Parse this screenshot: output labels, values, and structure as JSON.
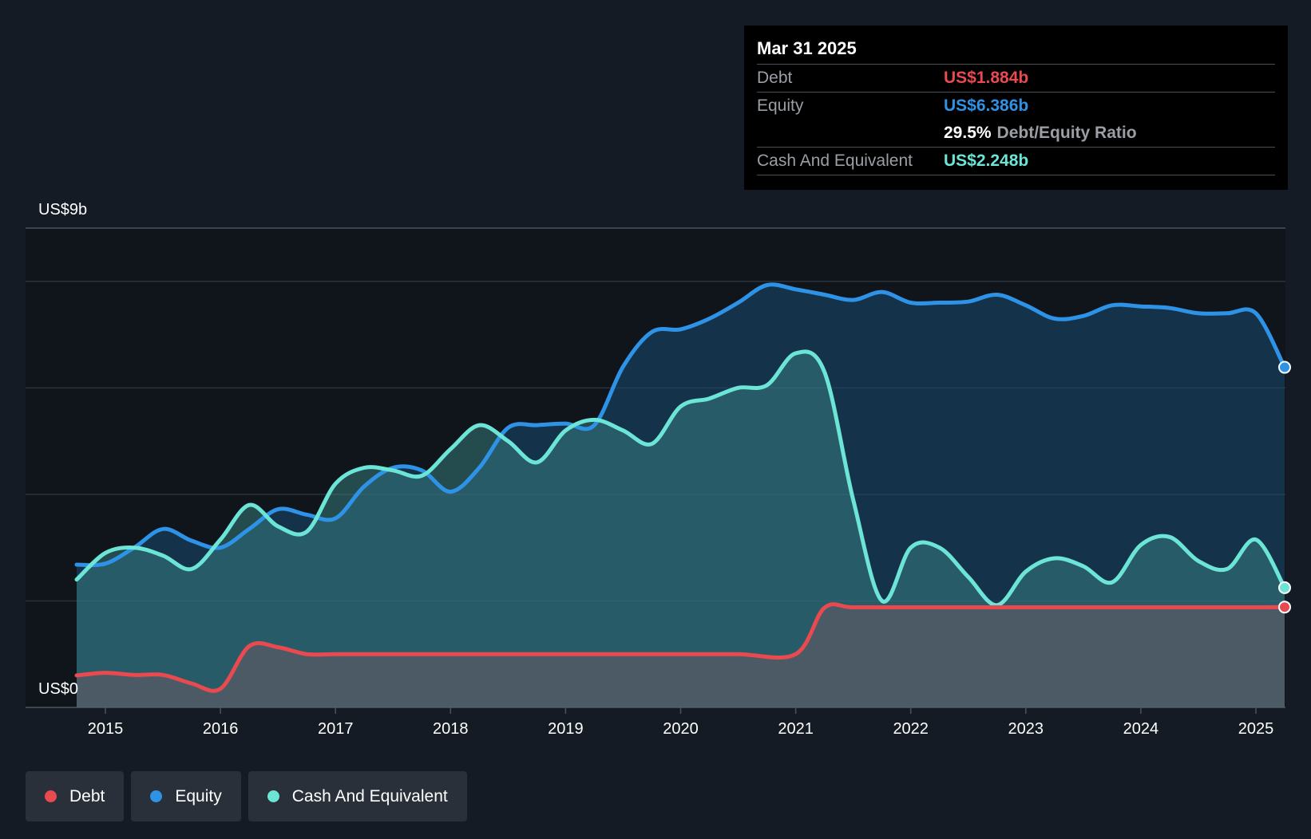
{
  "tooltip": {
    "date": "Mar 31 2025",
    "rows": [
      {
        "label": "Debt",
        "value": "US$1.884b",
        "color": "#e84a50"
      },
      {
        "label": "Equity",
        "value": "US$6.386b",
        "color": "#2e93e6"
      },
      {
        "label": "",
        "value": "29.5%",
        "extra": "Debt/Equity Ratio"
      },
      {
        "label": "Cash And Equivalent",
        "value": "US$2.248b",
        "color": "#6ce5d6"
      }
    ]
  },
  "legend": [
    {
      "label": "Debt",
      "color": "#e84a50"
    },
    {
      "label": "Equity",
      "color": "#2e93e6"
    },
    {
      "label": "Cash And Equivalent",
      "color": "#6ce5d6"
    }
  ],
  "chart_data": {
    "type": "area",
    "ylim": [
      0,
      9
    ],
    "y_top_label": "US$9b",
    "y_bottom_label": "US$0",
    "x_range": [
      2014.75,
      2025.25
    ],
    "x_ticks": [
      "2015",
      "2016",
      "2017",
      "2018",
      "2019",
      "2020",
      "2021",
      "2022",
      "2023",
      "2024",
      "2025"
    ],
    "grid": true,
    "series": [
      {
        "name": "Debt",
        "color": "#e84a50",
        "points": [
          [
            2014.75,
            0.6
          ],
          [
            2015.0,
            0.65
          ],
          [
            2015.25,
            0.61
          ],
          [
            2015.5,
            0.61
          ],
          [
            2015.75,
            0.45
          ],
          [
            2016.0,
            0.35
          ],
          [
            2016.25,
            1.15
          ],
          [
            2016.5,
            1.13
          ],
          [
            2016.75,
            1.0
          ],
          [
            2017.0,
            1.0
          ],
          [
            2017.5,
            1.0
          ],
          [
            2018.0,
            1.0
          ],
          [
            2018.5,
            1.0
          ],
          [
            2019.0,
            1.0
          ],
          [
            2019.5,
            1.0
          ],
          [
            2020.0,
            1.0
          ],
          [
            2020.5,
            1.0
          ],
          [
            2021.0,
            1.0
          ],
          [
            2021.25,
            1.87
          ],
          [
            2021.5,
            1.88
          ],
          [
            2022.0,
            1.88
          ],
          [
            2022.5,
            1.88
          ],
          [
            2023.0,
            1.88
          ],
          [
            2023.5,
            1.88
          ],
          [
            2024.0,
            1.88
          ],
          [
            2024.5,
            1.88
          ],
          [
            2025.0,
            1.88
          ],
          [
            2025.25,
            1.884
          ]
        ]
      },
      {
        "name": "Equity",
        "color": "#2e93e6",
        "points": [
          [
            2014.75,
            2.68
          ],
          [
            2015.0,
            2.7
          ],
          [
            2015.25,
            3.0
          ],
          [
            2015.5,
            3.35
          ],
          [
            2015.75,
            3.13
          ],
          [
            2016.0,
            3.0
          ],
          [
            2016.25,
            3.35
          ],
          [
            2016.5,
            3.72
          ],
          [
            2016.75,
            3.62
          ],
          [
            2017.0,
            3.55
          ],
          [
            2017.25,
            4.15
          ],
          [
            2017.5,
            4.5
          ],
          [
            2017.75,
            4.45
          ],
          [
            2018.0,
            4.05
          ],
          [
            2018.25,
            4.5
          ],
          [
            2018.5,
            5.25
          ],
          [
            2018.75,
            5.3
          ],
          [
            2019.0,
            5.33
          ],
          [
            2019.25,
            5.3
          ],
          [
            2019.5,
            6.4
          ],
          [
            2019.75,
            7.05
          ],
          [
            2020.0,
            7.1
          ],
          [
            2020.25,
            7.3
          ],
          [
            2020.5,
            7.6
          ],
          [
            2020.75,
            7.93
          ],
          [
            2021.0,
            7.85
          ],
          [
            2021.25,
            7.75
          ],
          [
            2021.5,
            7.65
          ],
          [
            2021.75,
            7.8
          ],
          [
            2022.0,
            7.6
          ],
          [
            2022.25,
            7.6
          ],
          [
            2022.5,
            7.62
          ],
          [
            2022.75,
            7.75
          ],
          [
            2023.0,
            7.55
          ],
          [
            2023.25,
            7.3
          ],
          [
            2023.5,
            7.35
          ],
          [
            2023.75,
            7.55
          ],
          [
            2024.0,
            7.53
          ],
          [
            2024.25,
            7.5
          ],
          [
            2024.5,
            7.4
          ],
          [
            2024.75,
            7.4
          ],
          [
            2025.0,
            7.4
          ],
          [
            2025.25,
            6.386
          ]
        ]
      },
      {
        "name": "Cash And Equivalent",
        "color": "#6ce5d6",
        "points": [
          [
            2014.75,
            2.4
          ],
          [
            2015.0,
            2.9
          ],
          [
            2015.25,
            3.0
          ],
          [
            2015.5,
            2.85
          ],
          [
            2015.75,
            2.6
          ],
          [
            2016.0,
            3.15
          ],
          [
            2016.25,
            3.8
          ],
          [
            2016.5,
            3.4
          ],
          [
            2016.75,
            3.3
          ],
          [
            2017.0,
            4.2
          ],
          [
            2017.25,
            4.5
          ],
          [
            2017.5,
            4.45
          ],
          [
            2017.75,
            4.35
          ],
          [
            2018.0,
            4.85
          ],
          [
            2018.25,
            5.3
          ],
          [
            2018.5,
            5.0
          ],
          [
            2018.75,
            4.6
          ],
          [
            2019.0,
            5.2
          ],
          [
            2019.25,
            5.4
          ],
          [
            2019.5,
            5.2
          ],
          [
            2019.75,
            4.95
          ],
          [
            2020.0,
            5.65
          ],
          [
            2020.25,
            5.8
          ],
          [
            2020.5,
            6.0
          ],
          [
            2020.75,
            6.05
          ],
          [
            2021.0,
            6.65
          ],
          [
            2021.25,
            6.3
          ],
          [
            2021.5,
            3.9
          ],
          [
            2021.75,
            2.0
          ],
          [
            2022.0,
            3.0
          ],
          [
            2022.25,
            3.0
          ],
          [
            2022.5,
            2.45
          ],
          [
            2022.75,
            1.92
          ],
          [
            2023.0,
            2.55
          ],
          [
            2023.25,
            2.8
          ],
          [
            2023.5,
            2.65
          ],
          [
            2023.75,
            2.35
          ],
          [
            2024.0,
            3.05
          ],
          [
            2024.25,
            3.2
          ],
          [
            2024.5,
            2.75
          ],
          [
            2024.75,
            2.6
          ],
          [
            2025.0,
            3.15
          ],
          [
            2025.25,
            2.248
          ]
        ]
      }
    ]
  }
}
